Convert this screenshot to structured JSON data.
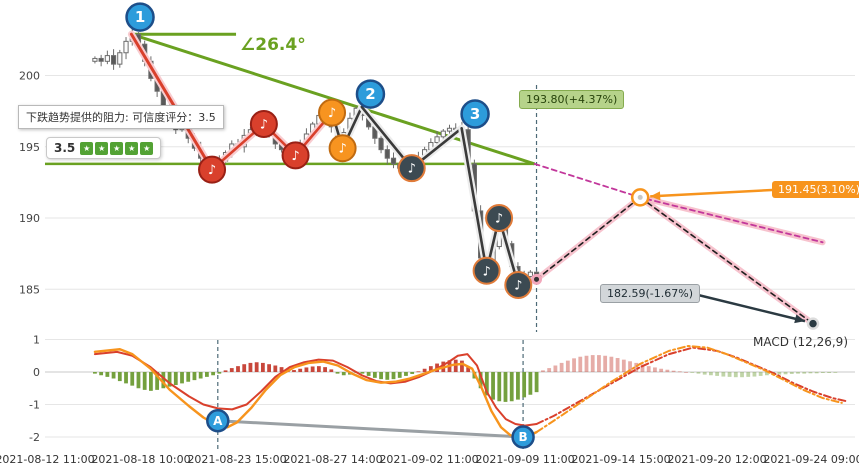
{
  "tooltip": {
    "text": "下跌趋势提供的阻力: 可信度评分：3.5",
    "score": "3.5",
    "score_blocks": 5
  },
  "tags": {
    "green": "193.80(+4.37%)",
    "orange": "191.45(3.10%)",
    "gray": "182.59(-1.67%)"
  },
  "angle_label": "∠26.4°",
  "macd_label": "MACD (12,26,9)",
  "colors": {
    "green_line": "#6aa121",
    "orange": "#f7941d",
    "red": "#d9402c",
    "dark": "#3a3a3a",
    "blue": "#2d9cdb",
    "blue_border": "#1d4e89",
    "magenta": "#c2379b",
    "pink_glow": "#f6b8c6",
    "hist_up": "#c8473b",
    "hist_down": "#74a03e",
    "axis_text": "#444",
    "grid": "#e6e6e6",
    "vline": "#4d6a77",
    "gray_line": "#9aa0a4",
    "dark_arrow": "#2b3a42"
  },
  "chart_data": {
    "type": "candlestick",
    "title": "",
    "x_axis": {
      "labels": [
        "2021-08-12 11:00",
        "2021-08-18 10:00",
        "2021-08-23 15:00",
        "2021-08-27 14:00",
        "2021-09-02 11:00",
        "2021-09-09 11:00",
        "2021-09-14 15:00",
        "2021-09-20 12:00",
        "2021-09-24 09:00"
      ]
    },
    "price_axis": {
      "ticks": [
        200,
        195,
        190,
        185
      ],
      "range": [
        182.0,
        204.6
      ]
    },
    "macd_axis": {
      "ticks": [
        1,
        0,
        -1,
        -2
      ],
      "range": [
        -2.4,
        1.15
      ]
    },
    "candles": {
      "start_t": 0.52,
      "dt": 0.0648,
      "first_open": 201.0,
      "closes": [
        201.2,
        201.0,
        201.4,
        200.8,
        201.6,
        202.4,
        202.9,
        202.2,
        201.0,
        199.8,
        198.9,
        197.8,
        197.0,
        196.2,
        196.8,
        195.6,
        194.9,
        194.2,
        193.8,
        193.4,
        194.0,
        194.6,
        195.2,
        195.0,
        195.8,
        196.2,
        196.6,
        196.4,
        195.8,
        195.2,
        194.8,
        194.4,
        194.5,
        195.2,
        195.9,
        196.6,
        197.2,
        197.4,
        196.4,
        195.0,
        196.0,
        197.0,
        197.7,
        197.2,
        196.4,
        195.6,
        194.8,
        194.2,
        193.8,
        193.5,
        193.6,
        193.5,
        194.2,
        194.8,
        195.3,
        195.7,
        196.1,
        196.3,
        196.3,
        196.2,
        193.8,
        190.5,
        187.2,
        186.3,
        188.0,
        190.0,
        188.2,
        186.6,
        185.3,
        185.9,
        186.2,
        185.7
      ]
    },
    "zigzag": {
      "red_segments": 4,
      "vertices": [
        [
          0.9,
          202.9
        ],
        [
          1.74,
          193.4
        ],
        [
          2.28,
          196.6
        ],
        [
          2.61,
          194.4
        ],
        [
          2.99,
          197.4
        ],
        [
          3.1,
          194.9
        ],
        [
          3.3,
          197.8
        ],
        [
          3.82,
          193.5
        ],
        [
          4.34,
          196.3
        ],
        [
          4.6,
          186.3
        ],
        [
          4.73,
          190.0
        ],
        [
          4.93,
          185.3
        ],
        [
          5.12,
          185.7
        ]
      ]
    },
    "note_markers": [
      {
        "t": 1.74,
        "p": 193.4,
        "c": "red"
      },
      {
        "t": 2.28,
        "p": 196.6,
        "c": "red"
      },
      {
        "t": 2.61,
        "p": 194.4,
        "c": "red"
      },
      {
        "t": 2.99,
        "p": 197.4,
        "c": "orange"
      },
      {
        "t": 3.1,
        "p": 194.9,
        "c": "orange"
      },
      {
        "t": 3.82,
        "p": 193.5,
        "c": "dark"
      },
      {
        "t": 4.6,
        "p": 186.3,
        "c": "dark"
      },
      {
        "t": 4.73,
        "p": 190.0,
        "c": "dark"
      },
      {
        "t": 4.93,
        "p": 185.3,
        "c": "dark"
      }
    ],
    "number_markers": [
      {
        "n": "1",
        "t": 0.99,
        "p": 204.1
      },
      {
        "n": "2",
        "t": 3.39,
        "p": 198.7
      },
      {
        "n": "3",
        "t": 4.48,
        "p": 197.3
      }
    ],
    "trend": {
      "resistance_price": 193.8,
      "from": [
        0.9,
        202.9
      ],
      "to": [
        5.1,
        193.8
      ],
      "angle_base_end_t": 1.99
    },
    "forecast": {
      "base": [
        5.12,
        185.7
      ],
      "hub": [
        6.2,
        191.45
      ],
      "magenta_end": [
        8.1,
        188.3
      ],
      "gray_end": [
        8.0,
        182.59
      ],
      "targets": [
        {
          "price": 193.8,
          "change": "+4.37%"
        },
        {
          "price": 191.45,
          "change": "3.10%"
        },
        {
          "price": 182.59,
          "change": "-1.67%"
        }
      ]
    },
    "vlines": {
      "price_t": 5.12,
      "macd_t": [
        1.8,
        4.98
      ]
    },
    "ab_markers": [
      {
        "n": "A",
        "t": 1.8,
        "v": -1.5
      },
      {
        "n": "B",
        "t": 4.98,
        "v": -2.0
      }
    ],
    "macd": {
      "forecast_start_t": 5.187,
      "hist": [
        -0.05,
        -0.1,
        -0.15,
        -0.2,
        -0.28,
        -0.35,
        -0.42,
        -0.5,
        -0.55,
        -0.58,
        -0.55,
        -0.5,
        -0.45,
        -0.4,
        -0.35,
        -0.3,
        -0.25,
        -0.2,
        -0.15,
        -0.1,
        -0.05,
        0.05,
        0.12,
        0.18,
        0.24,
        0.28,
        0.3,
        0.28,
        0.24,
        0.2,
        0.15,
        0.1,
        0.06,
        0.1,
        0.14,
        0.17,
        0.18,
        0.15,
        0.08,
        -0.05,
        -0.1,
        -0.08,
        -0.02,
        -0.05,
        -0.12,
        -0.18,
        -0.22,
        -0.24,
        -0.22,
        -0.18,
        -0.12,
        -0.06,
        0.02,
        0.1,
        0.18,
        0.26,
        0.32,
        0.36,
        0.38,
        0.35,
        0.15,
        -0.2,
        -0.5,
        -0.72,
        -0.85,
        -0.9,
        -0.92,
        -0.9,
        -0.85,
        -0.78,
        -0.7,
        -0.62
      ],
      "hist_forecast": [
        0.05,
        0.12,
        0.2,
        0.28,
        0.35,
        0.42,
        0.47,
        0.5,
        0.52,
        0.52,
        0.5,
        0.47,
        0.43,
        0.38,
        0.33,
        0.28,
        0.23,
        0.18,
        0.14,
        0.1,
        0.07,
        0.04,
        0.02,
        0.0,
        -0.02,
        -0.05,
        -0.08,
        -0.1,
        -0.12,
        -0.14,
        -0.15,
        -0.16,
        -0.16,
        -0.15,
        -0.14,
        -0.12,
        -0.1,
        -0.09,
        -0.08,
        -0.07,
        -0.06,
        -0.05,
        -0.05,
        -0.04,
        -0.04,
        -0.03,
        -0.03,
        -0.02
      ],
      "orange": [
        [
          0.52,
          0.62
        ],
        [
          0.78,
          0.7
        ],
        [
          0.91,
          0.55
        ],
        [
          1.1,
          0.1
        ],
        [
          1.3,
          -0.55
        ],
        [
          1.5,
          -1.05
        ],
        [
          1.65,
          -1.4
        ],
        [
          1.78,
          -1.62
        ],
        [
          1.9,
          -1.7
        ],
        [
          2.0,
          -1.55
        ],
        [
          2.15,
          -1.1
        ],
        [
          2.3,
          -0.55
        ],
        [
          2.45,
          -0.1
        ],
        [
          2.6,
          0.15
        ],
        [
          2.75,
          0.28
        ],
        [
          2.9,
          0.32
        ],
        [
          3.05,
          0.2
        ],
        [
          3.2,
          -0.05
        ],
        [
          3.35,
          -0.25
        ],
        [
          3.5,
          -0.33
        ],
        [
          3.65,
          -0.3
        ],
        [
          3.8,
          -0.2
        ],
        [
          3.95,
          -0.05
        ],
        [
          4.1,
          0.1
        ],
        [
          4.25,
          0.22
        ],
        [
          4.35,
          0.25
        ],
        [
          4.45,
          0.1
        ],
        [
          4.55,
          -0.5
        ],
        [
          4.65,
          -1.2
        ],
        [
          4.75,
          -1.7
        ],
        [
          4.85,
          -1.95
        ],
        [
          4.95,
          -2.0
        ],
        [
          5.05,
          -1.95
        ],
        [
          5.12,
          -1.85
        ]
      ],
      "orange_forecast": [
        [
          5.12,
          -1.85
        ],
        [
          5.3,
          -1.5
        ],
        [
          5.6,
          -0.9
        ],
        [
          5.9,
          -0.3
        ],
        [
          6.2,
          0.25
        ],
        [
          6.5,
          0.65
        ],
        [
          6.7,
          0.8
        ],
        [
          6.9,
          0.75
        ],
        [
          7.1,
          0.55
        ],
        [
          7.3,
          0.3
        ],
        [
          7.5,
          0.05
        ],
        [
          7.7,
          -0.25
        ],
        [
          7.9,
          -0.55
        ],
        [
          8.1,
          -0.8
        ],
        [
          8.3,
          -0.95
        ]
      ],
      "red": [
        [
          0.52,
          0.55
        ],
        [
          0.75,
          0.62
        ],
        [
          0.91,
          0.5
        ],
        [
          1.1,
          0.15
        ],
        [
          1.3,
          -0.35
        ],
        [
          1.5,
          -0.75
        ],
        [
          1.65,
          -1.0
        ],
        [
          1.8,
          -1.12
        ],
        [
          1.95,
          -1.15
        ],
        [
          2.1,
          -1.0
        ],
        [
          2.25,
          -0.6
        ],
        [
          2.4,
          -0.15
        ],
        [
          2.55,
          0.15
        ],
        [
          2.7,
          0.3
        ],
        [
          2.85,
          0.38
        ],
        [
          3.0,
          0.35
        ],
        [
          3.15,
          0.15
        ],
        [
          3.3,
          -0.1
        ],
        [
          3.45,
          -0.28
        ],
        [
          3.6,
          -0.35
        ],
        [
          3.75,
          -0.3
        ],
        [
          3.9,
          -0.15
        ],
        [
          4.05,
          0.05
        ],
        [
          4.2,
          0.3
        ],
        [
          4.3,
          0.5
        ],
        [
          4.4,
          0.55
        ],
        [
          4.5,
          0.2
        ],
        [
          4.6,
          -0.6
        ],
        [
          4.7,
          -1.1
        ],
        [
          4.8,
          -1.45
        ],
        [
          4.9,
          -1.6
        ],
        [
          5.0,
          -1.65
        ],
        [
          5.12,
          -1.6
        ]
      ],
      "red_forecast": [
        [
          5.12,
          -1.6
        ],
        [
          5.3,
          -1.35
        ],
        [
          5.6,
          -0.85
        ],
        [
          5.9,
          -0.35
        ],
        [
          6.2,
          0.15
        ],
        [
          6.5,
          0.55
        ],
        [
          6.75,
          0.75
        ],
        [
          7.0,
          0.65
        ],
        [
          7.2,
          0.45
        ],
        [
          7.4,
          0.2
        ],
        [
          7.6,
          -0.05
        ],
        [
          7.8,
          -0.35
        ],
        [
          8.0,
          -0.6
        ],
        [
          8.2,
          -0.8
        ],
        [
          8.35,
          -0.9
        ]
      ]
    }
  }
}
